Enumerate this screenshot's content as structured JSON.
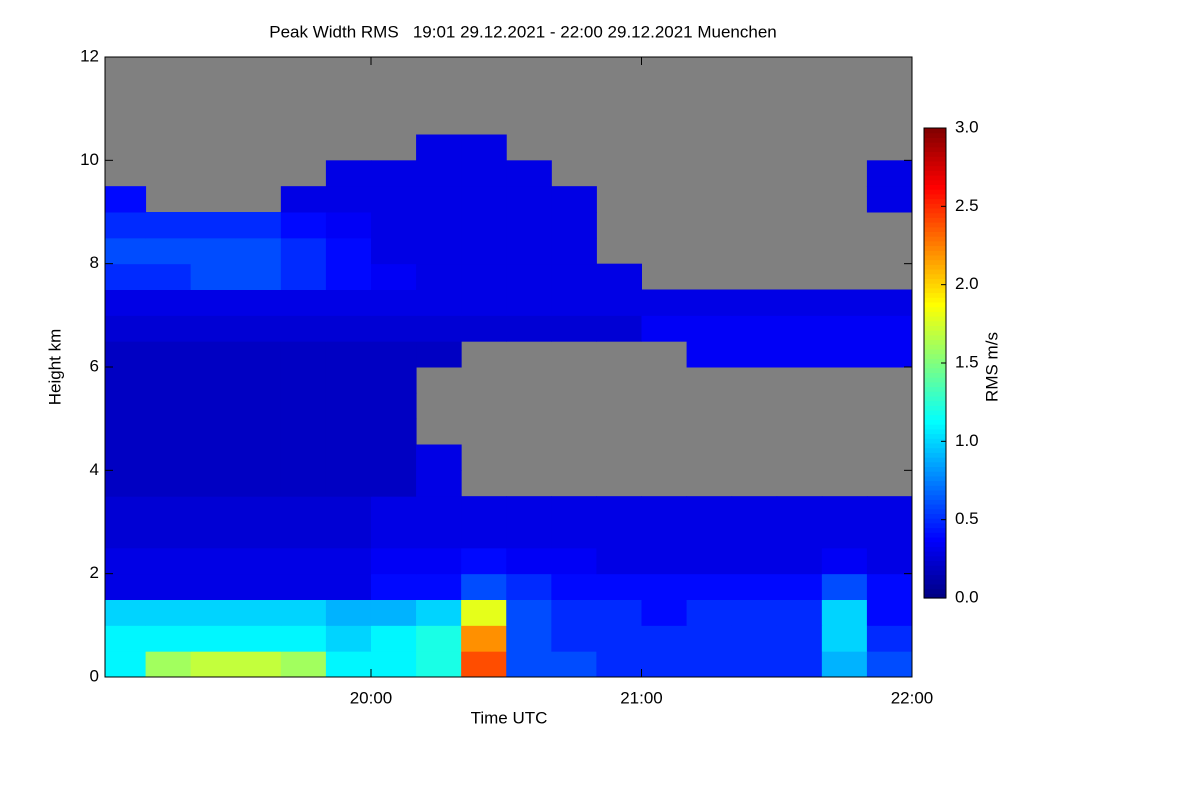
{
  "chart_data": {
    "type": "heatmap",
    "title": "Peak Width RMS   19:01 29.12.2021 - 22:00 29.12.2021 Muenchen",
    "x_label": "Time UTC",
    "y_label": "Height km",
    "colorbar_label": "RMS m/s",
    "xlim": [
      19.0167,
      22.0
    ],
    "xticks": [
      {
        "value": 20,
        "label": "20:00"
      },
      {
        "value": 21,
        "label": "21:00"
      },
      {
        "value": 22,
        "label": "22:00"
      }
    ],
    "ylim": [
      0,
      12
    ],
    "yticks": [
      0,
      2,
      4,
      6,
      8,
      10,
      12
    ],
    "zlim": [
      0,
      3
    ],
    "zticks": [
      {
        "value": 0,
        "label": "0.0"
      },
      {
        "value": 0.5,
        "label": "0.5"
      },
      {
        "value": 1,
        "label": "1.0"
      },
      {
        "value": 1.5,
        "label": "1.5"
      },
      {
        "value": 2,
        "label": "2.0"
      },
      {
        "value": 2.5,
        "label": "2.5"
      },
      {
        "value": 3,
        "label": "3.0"
      }
    ],
    "colormap": "jet",
    "missing_color": "#808080",
    "x_bins": [
      19.0167,
      19.1667,
      19.3333,
      19.5,
      19.6667,
      19.8333,
      20.0,
      20.1667,
      20.3333,
      20.5,
      20.6667,
      20.8333,
      21.0,
      21.1667,
      21.3333,
      21.5,
      21.6667,
      21.8333,
      22.0
    ],
    "y_bins": [
      0,
      0.5,
      1,
      1.5,
      2,
      2.5,
      3,
      3.5,
      4,
      4.5,
      5,
      5.5,
      6,
      6.5,
      7,
      7.5,
      8,
      8.5,
      9,
      9.5,
      10,
      10.5,
      11,
      11.5,
      12
    ],
    "z": [
      [
        1.1,
        1.6,
        1.7,
        1.7,
        1.6,
        1.1,
        1.1,
        1.2,
        2.4,
        0.6,
        0.6,
        0.5,
        0.5,
        0.5,
        0.5,
        0.5,
        0.9,
        0.6
      ],
      [
        1.1,
        1.1,
        1.1,
        1.1,
        1.1,
        1.0,
        1.1,
        1.2,
        2.2,
        0.6,
        0.5,
        0.5,
        0.5,
        0.5,
        0.5,
        0.5,
        1.0,
        0.5
      ],
      [
        1.0,
        1.0,
        1.0,
        1.0,
        1.0,
        0.9,
        0.9,
        1.0,
        1.8,
        0.6,
        0.5,
        0.5,
        0.4,
        0.5,
        0.5,
        0.5,
        1.0,
        0.4
      ],
      [
        0.3,
        0.3,
        0.3,
        0.3,
        0.3,
        0.3,
        0.4,
        0.4,
        0.6,
        0.5,
        0.4,
        0.4,
        0.4,
        0.4,
        0.4,
        0.4,
        0.6,
        0.4
      ],
      [
        0.3,
        0.3,
        0.3,
        0.3,
        0.3,
        0.3,
        0.35,
        0.35,
        0.4,
        0.35,
        0.35,
        0.3,
        0.3,
        0.3,
        0.3,
        0.3,
        0.35,
        0.3
      ],
      [
        0.25,
        0.25,
        0.25,
        0.25,
        0.25,
        0.25,
        0.3,
        0.3,
        0.3,
        0.3,
        0.3,
        0.3,
        0.3,
        0.3,
        0.3,
        0.3,
        0.3,
        0.3
      ],
      [
        0.25,
        0.25,
        0.25,
        0.25,
        0.25,
        0.25,
        0.3,
        0.3,
        0.3,
        0.3,
        0.3,
        0.3,
        0.3,
        0.3,
        0.3,
        0.3,
        0.3,
        0.3
      ],
      [
        0.2,
        0.2,
        0.2,
        0.2,
        0.2,
        0.2,
        0.2,
        0.3,
        null,
        null,
        null,
        null,
        null,
        null,
        null,
        null,
        null,
        null
      ],
      [
        0.2,
        0.2,
        0.2,
        0.2,
        0.2,
        0.2,
        0.2,
        0.3,
        null,
        null,
        null,
        null,
        null,
        null,
        null,
        null,
        null,
        null
      ],
      [
        0.2,
        0.2,
        0.2,
        0.2,
        0.2,
        0.2,
        0.2,
        null,
        null,
        null,
        null,
        null,
        null,
        null,
        null,
        null,
        null,
        null
      ],
      [
        0.2,
        0.2,
        0.2,
        0.2,
        0.2,
        0.2,
        0.2,
        null,
        null,
        null,
        null,
        null,
        null,
        null,
        null,
        null,
        null,
        null
      ],
      [
        0.2,
        0.2,
        0.2,
        0.2,
        0.2,
        0.2,
        0.2,
        null,
        null,
        null,
        null,
        null,
        null,
        null,
        null,
        null,
        null,
        null
      ],
      [
        0.2,
        0.2,
        0.2,
        0.2,
        0.2,
        0.2,
        0.2,
        0.2,
        null,
        null,
        null,
        null,
        null,
        0.35,
        0.35,
        0.35,
        0.35,
        0.35
      ],
      [
        0.25,
        0.25,
        0.25,
        0.25,
        0.25,
        0.25,
        0.25,
        0.25,
        0.25,
        0.25,
        0.25,
        0.25,
        0.35,
        0.35,
        0.35,
        0.35,
        0.35,
        0.35
      ],
      [
        0.3,
        0.3,
        0.3,
        0.3,
        0.3,
        0.3,
        0.3,
        0.3,
        0.3,
        0.3,
        0.3,
        0.3,
        0.3,
        0.3,
        0.3,
        0.3,
        0.3,
        0.3
      ],
      [
        0.5,
        0.5,
        0.6,
        0.6,
        0.5,
        0.4,
        0.35,
        0.3,
        0.3,
        0.3,
        0.3,
        0.3,
        null,
        null,
        null,
        null,
        null,
        null
      ],
      [
        0.6,
        0.6,
        0.6,
        0.6,
        0.5,
        0.4,
        0.3,
        0.3,
        0.3,
        0.3,
        0.3,
        null,
        null,
        null,
        null,
        null,
        null,
        null
      ],
      [
        0.5,
        0.5,
        0.5,
        0.5,
        0.4,
        0.35,
        0.3,
        0.3,
        0.3,
        0.3,
        0.3,
        null,
        null,
        null,
        null,
        null,
        null,
        null
      ],
      [
        0.4,
        null,
        null,
        null,
        0.3,
        0.3,
        0.3,
        0.3,
        0.3,
        0.3,
        0.3,
        null,
        null,
        null,
        null,
        null,
        null,
        0.3
      ],
      [
        null,
        null,
        null,
        null,
        null,
        0.3,
        0.3,
        0.3,
        0.3,
        0.3,
        null,
        null,
        null,
        null,
        null,
        null,
        null,
        0.3
      ],
      [
        null,
        null,
        null,
        null,
        null,
        null,
        null,
        0.3,
        0.3,
        null,
        null,
        null,
        null,
        null,
        null,
        null,
        null,
        null
      ],
      [
        null,
        null,
        null,
        null,
        null,
        null,
        null,
        null,
        null,
        null,
        null,
        null,
        null,
        null,
        null,
        null,
        null,
        null
      ],
      [
        null,
        null,
        null,
        null,
        null,
        null,
        null,
        null,
        null,
        null,
        null,
        null,
        null,
        null,
        null,
        null,
        null,
        null
      ],
      [
        null,
        null,
        null,
        null,
        null,
        null,
        null,
        null,
        null,
        null,
        null,
        null,
        null,
        null,
        null,
        null,
        null,
        null
      ]
    ]
  }
}
